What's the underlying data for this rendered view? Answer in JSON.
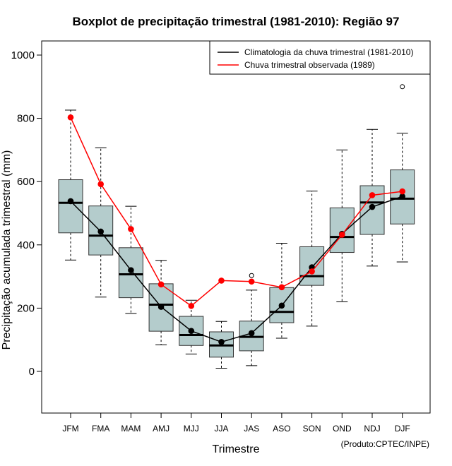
{
  "chart_data": {
    "type": "boxplot",
    "title": "Boxplot de precipitação trimestral (1981-2010): Região 97",
    "xlabel": "Trimestre",
    "ylabel": "Precipitação acumulada trimestral (mm)",
    "ylim": [
      -130,
      1040
    ],
    "yticks": [
      "0",
      "200",
      "400",
      "600",
      "800",
      "1000"
    ],
    "credit": "(Produto:CPTEC/INPE)",
    "categories": [
      "JFM",
      "FMA",
      "MAM",
      "AMJ",
      "MJJ",
      "JJA",
      "JAS",
      "ASO",
      "SON",
      "OND",
      "NDJ",
      "DJF"
    ],
    "boxes": [
      {
        "whisker_low": 352,
        "q1": 438,
        "median": 533,
        "q3": 606,
        "whisker_high": 826,
        "outliers": []
      },
      {
        "whisker_low": 235,
        "q1": 368,
        "median": 429,
        "q3": 523,
        "whisker_high": 707,
        "outliers": []
      },
      {
        "whisker_low": 183,
        "q1": 233,
        "median": 307,
        "q3": 391,
        "whisker_high": 522,
        "outliers": []
      },
      {
        "whisker_low": 84,
        "q1": 127,
        "median": 211,
        "q3": 277,
        "whisker_high": 351,
        "outliers": []
      },
      {
        "whisker_low": 55,
        "q1": 82,
        "median": 115,
        "q3": 174,
        "whisker_high": 225,
        "outliers": []
      },
      {
        "whisker_low": 10,
        "q1": 45,
        "median": 82,
        "q3": 125,
        "whisker_high": 158,
        "outliers": []
      },
      {
        "whisker_low": 18,
        "q1": 65,
        "median": 109,
        "q3": 159,
        "whisker_high": 257,
        "outliers": [
          303
        ]
      },
      {
        "whisker_low": 105,
        "q1": 154,
        "median": 188,
        "q3": 265,
        "whisker_high": 405,
        "outliers": []
      },
      {
        "whisker_low": 143,
        "q1": 272,
        "median": 301,
        "q3": 394,
        "whisker_high": 570,
        "outliers": []
      },
      {
        "whisker_low": 220,
        "q1": 376,
        "median": 425,
        "q3": 517,
        "whisker_high": 700,
        "outliers": []
      },
      {
        "whisker_low": 333,
        "q1": 433,
        "median": 534,
        "q3": 587,
        "whisker_high": 765,
        "outliers": []
      },
      {
        "whisker_low": 346,
        "q1": 466,
        "median": 546,
        "q3": 637,
        "whisker_high": 753,
        "outliers": [
          900
        ]
      }
    ],
    "series": [
      {
        "name": "Climatologia da chuva trimestral (1981-2010)",
        "color": "#000000",
        "values": [
          538,
          442,
          320,
          204,
          128,
          93,
          121,
          208,
          329,
          435,
          520,
          553
        ]
      },
      {
        "name": "Chuva trimestral observada (1989)",
        "color": "#ff0000",
        "values": [
          803,
          592,
          450,
          275,
          207,
          287,
          284,
          266,
          316,
          432,
          557,
          569
        ]
      }
    ],
    "box_fill": "#b4cccc",
    "legend_position": "top-right"
  }
}
